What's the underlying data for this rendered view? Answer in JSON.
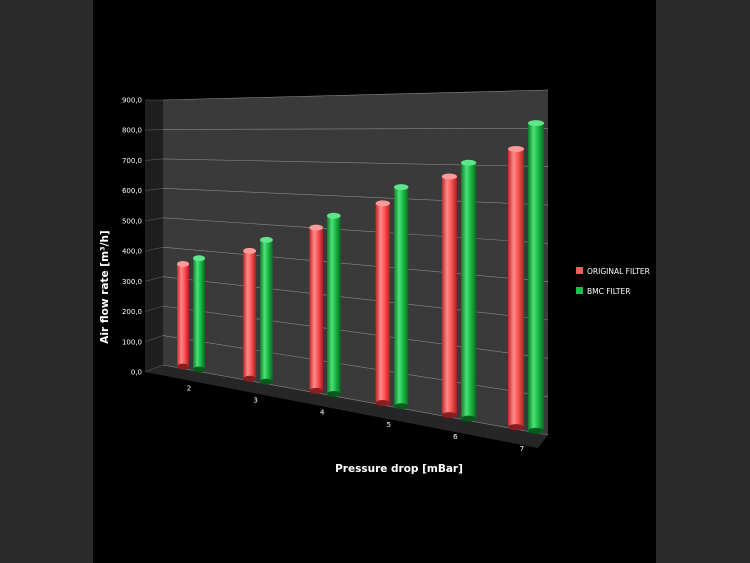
{
  "chart_data": {
    "type": "bar",
    "categories": [
      "2",
      "3",
      "4",
      "5",
      "6",
      "7"
    ],
    "series": [
      {
        "name": "ORIGINAL FILTER",
        "values": [
          350,
          415,
          505,
          590,
          675,
          755
        ],
        "color": "#ff5a5a"
      },
      {
        "name": "BMC FILTER",
        "values": [
          375,
          455,
          545,
          640,
          715,
          825
        ],
        "color": "#1fbf4a"
      }
    ],
    "xlabel": "Pressure drop [mBar]",
    "ylabel": "Air flow rate [m³/h]",
    "ylim": [
      0,
      900
    ],
    "ytick_labels": [
      "0,0",
      "100,0",
      "200,0",
      "300,0",
      "400,0",
      "500,0",
      "600,0",
      "700,0",
      "800,0",
      "900,0"
    ],
    "grid": true,
    "legend_position": "right",
    "background_color": "#000000",
    "wall_color": "#3a3a3a",
    "gridline_color": "#8a8a8a"
  }
}
